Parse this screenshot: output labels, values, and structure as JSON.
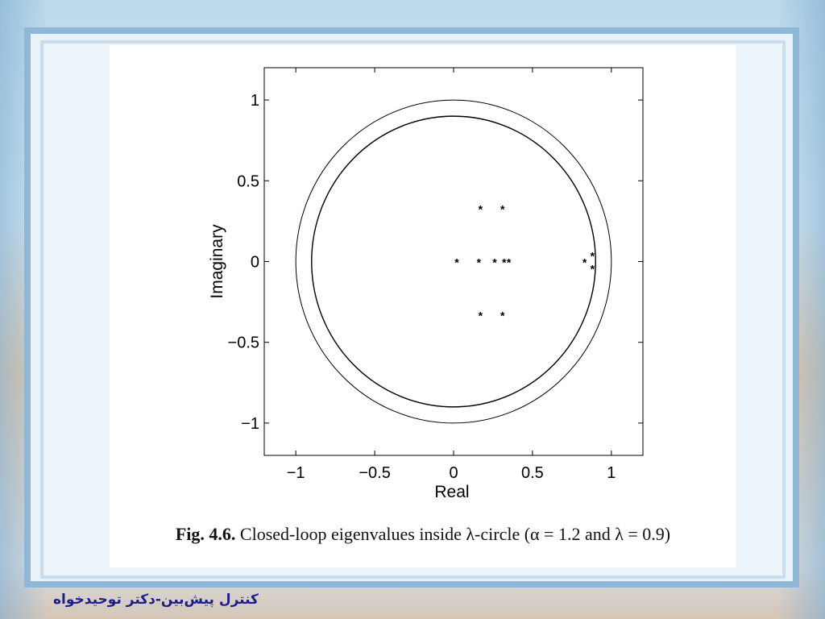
{
  "chart_data": {
    "type": "scatter",
    "xlabel": "Real",
    "ylabel": "Imaginary",
    "xlim": [
      -1.2,
      1.2
    ],
    "ylim": [
      -1.2,
      1.2
    ],
    "xticks": [
      -1,
      -0.5,
      0,
      0.5,
      1
    ],
    "xtick_labels": [
      "−1",
      "−0.5",
      "0",
      "0.5",
      "1"
    ],
    "yticks": [
      -1,
      -0.5,
      0,
      0.5,
      1
    ],
    "ytick_labels": [
      "−1",
      "−0.5",
      "0",
      "0.5",
      "1"
    ],
    "grid": false,
    "marker": "*",
    "circles": [
      {
        "radius": 1.0
      },
      {
        "radius": 0.9
      }
    ],
    "points": [
      {
        "x": 0.02,
        "y": 0
      },
      {
        "x": 0.17,
        "y": 0.33
      },
      {
        "x": 0.31,
        "y": 0.33
      },
      {
        "x": 0.16,
        "y": 0
      },
      {
        "x": 0.26,
        "y": 0
      },
      {
        "x": 0.32,
        "y": 0
      },
      {
        "x": 0.35,
        "y": 0
      },
      {
        "x": 0.17,
        "y": -0.33
      },
      {
        "x": 0.31,
        "y": -0.33
      },
      {
        "x": 0.83,
        "y": 0
      },
      {
        "x": 0.88,
        "y": 0.04
      },
      {
        "x": 0.88,
        "y": -0.04
      }
    ]
  },
  "caption": {
    "fig_label": "Fig. 4.6.",
    "text": " Closed-loop eigenvalues inside λ-circle (α = 1.2 and λ = 0.9)"
  },
  "footer": {
    "text": "کنترل پیش‌بین-دکتر توحیدخواه"
  }
}
